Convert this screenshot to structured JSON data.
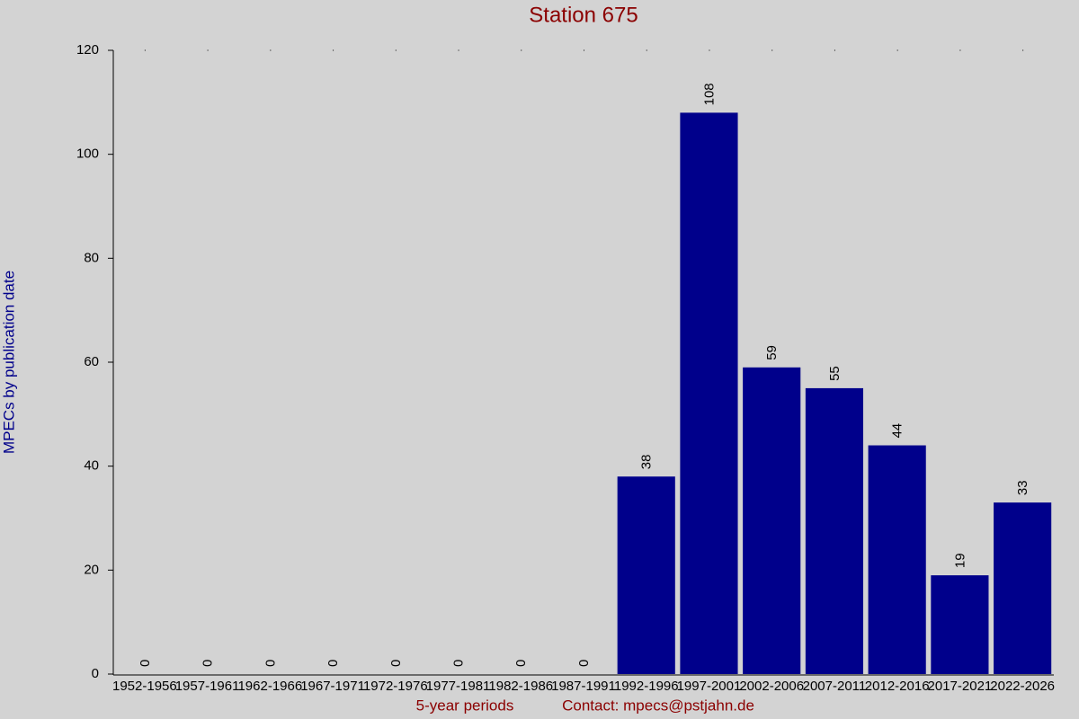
{
  "chart_data": {
    "type": "bar",
    "title": "Station 675",
    "xlabel": "5-year periods",
    "ylabel": "MPECs by publication date",
    "footer": "Contact: mpecs@pstjahn.de",
    "categories": [
      "1952-1956",
      "1957-1961",
      "1962-1966",
      "1967-1971",
      "1972-1976",
      "1977-1981",
      "1982-1986",
      "1987-1991",
      "1992-1996",
      "1997-2001",
      "2002-2006",
      "2007-2011",
      "2012-2016",
      "2017-2021",
      "2022-2026"
    ],
    "values": [
      0,
      0,
      0,
      0,
      0,
      0,
      0,
      0,
      38,
      108,
      59,
      55,
      44,
      19,
      33
    ],
    "color": "#00008b",
    "ylim": [
      0,
      120
    ],
    "yticks": [
      0,
      20,
      40,
      60,
      80,
      100,
      120
    ],
    "grid": false
  }
}
